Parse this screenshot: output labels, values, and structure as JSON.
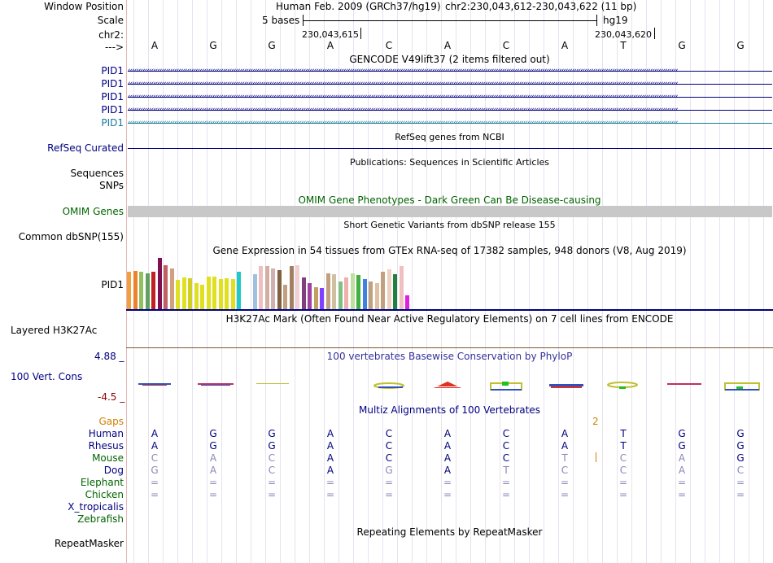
{
  "header": {
    "window_position_label": "Window Position",
    "scale_label": "Scale",
    "chr_label": "chr2:",
    "strand_label": "--->",
    "assembly_text": "Human Feb. 2009 (GRCh37/hg19)",
    "position_text": "chr2:230,043,612-230,043,622 (11 bp)",
    "scale_text": "5 bases",
    "db_text": "hg19",
    "coord_left": "230,043,615",
    "coord_right": "230,043,620"
  },
  "bases": [
    "A",
    "G",
    "G",
    "A",
    "C",
    "A",
    "C",
    "A",
    "T",
    "G",
    "G"
  ],
  "gencode": {
    "title": "GENCODE V49lift37 (2 items filtered out)",
    "items": [
      {
        "label": "PID1",
        "color": "#000080"
      },
      {
        "label": "PID1",
        "color": "#000080"
      },
      {
        "label": "PID1",
        "color": "#000080"
      },
      {
        "label": "PID1",
        "color": "#000080"
      },
      {
        "label": "PID1",
        "color": "#1a7a9a"
      }
    ]
  },
  "refseq": {
    "title": "RefSeq genes from NCBI",
    "label": "RefSeq Curated"
  },
  "publications": {
    "title": "Publications: Sequences in Scientific Articles",
    "label_1": "Sequences",
    "label_2": "SNPs"
  },
  "omim": {
    "title": "OMIM Gene Phenotypes - Dark Green Can Be Disease-causing",
    "label": "OMIM Genes"
  },
  "dbsnp": {
    "title": "Short Genetic Variants from dbSNP release 155",
    "label": "Common dbSNP(155)"
  },
  "gtex": {
    "title": "Gene Expression in 54 tissues from GTEx RNA-seq of 17382 samples, 948 donors (V8, Aug 2019)",
    "label": "PID1"
  },
  "h3k27": {
    "title": "H3K27Ac Mark (Often Found Near Active Regulatory Elements) on 7 cell lines from ENCODE",
    "label": "Layered H3K27Ac"
  },
  "conservation": {
    "title": "100 vertebrates Basewise Conservation by PhyloP",
    "label": "100 Vert. Cons",
    "max": "4.88 _",
    "min": "-4.5 _"
  },
  "multiz": {
    "title": "Multiz Alignments of 100 Vertebrates",
    "gaps_label": "Gaps",
    "gaps_value": "2",
    "species": [
      {
        "name": "Human",
        "color": "#000080",
        "seq": [
          "A",
          "G",
          "G",
          "A",
          "C",
          "A",
          "C",
          "A",
          "T",
          "G",
          "G"
        ]
      },
      {
        "name": "Rhesus",
        "color": "#000080",
        "seq": [
          "A",
          "G",
          "G",
          "A",
          "C",
          "A",
          "C",
          "A",
          "T",
          "G",
          "G"
        ]
      },
      {
        "name": "Mouse",
        "color": "#006400",
        "seq": [
          "C",
          "A",
          "C",
          "A",
          "C",
          "A",
          "C",
          "T",
          "C",
          "A",
          "G"
        ]
      },
      {
        "name": "Dog",
        "color": "#000080",
        "seq": [
          "G",
          "A",
          "C",
          "A",
          "G",
          "A",
          "T",
          "C",
          "C",
          "A",
          "C"
        ]
      },
      {
        "name": "Elephant",
        "color": "#006400",
        "seq": [
          "=",
          "=",
          "=",
          "=",
          "=",
          "=",
          "=",
          "=",
          "=",
          "=",
          "="
        ]
      },
      {
        "name": "Chicken",
        "color": "#006400",
        "seq": [
          "=",
          "=",
          "=",
          "=",
          "=",
          "=",
          "=",
          "=",
          "=",
          "=",
          "="
        ]
      },
      {
        "name": "X_tropicalis",
        "color": "#000080",
        "seq": [
          "",
          "",
          "",
          "",
          "",
          "",
          "",
          "",
          "",
          "",
          ""
        ]
      },
      {
        "name": "Zebrafish",
        "color": "#006400",
        "seq": [
          "",
          "",
          "",
          "",
          "",
          "",
          "",
          "",
          "",
          "",
          ""
        ]
      }
    ]
  },
  "repeatmasker": {
    "title": "Repeating Elements by RepeatMasker",
    "label": "RepeatMasker"
  },
  "colors": {
    "navy": "#000080",
    "dark_green": "#006400",
    "omim_gray": "#c8c8c8",
    "gaps_orange": "#d08000"
  }
}
